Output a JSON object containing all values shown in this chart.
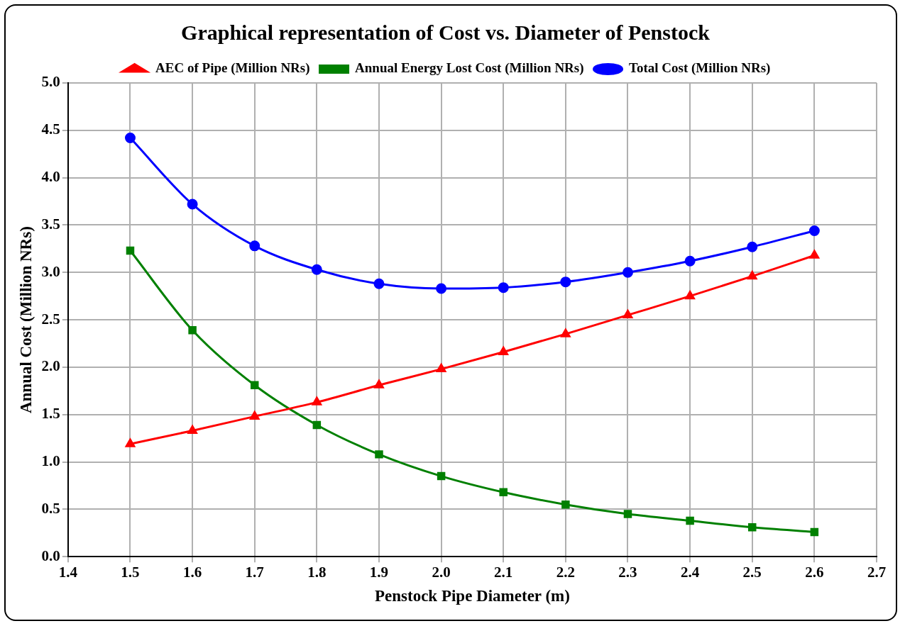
{
  "chart_data": {
    "type": "line",
    "title": "Graphical representation of Cost vs. Diameter of Penstock",
    "xlabel": "Penstock Pipe Diameter (m)",
    "ylabel": "Annual Cost (Million NRs)",
    "x": [
      1.5,
      1.6,
      1.7,
      1.8,
      1.9,
      2.0,
      2.1,
      2.2,
      2.3,
      2.4,
      2.5,
      2.6
    ],
    "series": [
      {
        "name": "AEC of Pipe (Million NRs)",
        "color": "#ff0000",
        "marker": "triangle",
        "values": [
          1.19,
          1.33,
          1.48,
          1.63,
          1.81,
          1.98,
          2.16,
          2.35,
          2.55,
          2.75,
          2.96,
          3.18
        ]
      },
      {
        "name": "Annual Energy Lost Cost (Million NRs)",
        "color": "#008000",
        "marker": "square",
        "values": [
          3.23,
          2.39,
          1.81,
          1.39,
          1.08,
          0.85,
          0.68,
          0.55,
          0.45,
          0.38,
          0.31,
          0.26
        ]
      },
      {
        "name": "Total Cost (Million NRs)",
        "color": "#0000ff",
        "marker": "circle",
        "values": [
          4.42,
          3.72,
          3.28,
          3.03,
          2.88,
          2.83,
          2.84,
          2.9,
          3.0,
          3.12,
          3.27,
          3.44
        ]
      }
    ],
    "xlim": [
      1.4,
      2.7
    ],
    "xticks": [
      {
        "value": 1.4,
        "label": "1.4"
      },
      {
        "value": 1.5,
        "label": "1.5"
      },
      {
        "value": 1.6,
        "label": "1.6"
      },
      {
        "value": 1.7,
        "label": "1.7"
      },
      {
        "value": 1.8,
        "label": "1.8"
      },
      {
        "value": 1.9,
        "label": "1.9"
      },
      {
        "value": 2.0,
        "label": "2.0"
      },
      {
        "value": 2.1,
        "label": "2.1"
      },
      {
        "value": 2.2,
        "label": "2.2"
      },
      {
        "value": 2.3,
        "label": "2.3"
      },
      {
        "value": 2.4,
        "label": "2.4"
      },
      {
        "value": 2.5,
        "label": "2.5"
      },
      {
        "value": 2.6,
        "label": "2.6"
      },
      {
        "value": 2.7,
        "label": "2.7"
      }
    ],
    "ylim": [
      0,
      5
    ],
    "yticks": [
      {
        "value": 0,
        "label": "0.0"
      },
      {
        "value": 0.5,
        "label": "0.5"
      },
      {
        "value": 1,
        "label": "1.0"
      },
      {
        "value": 1.5,
        "label": "1.5"
      },
      {
        "value": 2,
        "label": "2.0"
      },
      {
        "value": 2.5,
        "label": "2.5"
      },
      {
        "value": 3,
        "label": "3.0"
      },
      {
        "value": 3.5,
        "label": "3.5"
      },
      {
        "value": 4,
        "label": "4.0"
      },
      {
        "value": 4.5,
        "label": "4.5"
      },
      {
        "value": 5,
        "label": "5.0"
      }
    ],
    "grid": true,
    "legend": "top",
    "line_style": "solid"
  }
}
